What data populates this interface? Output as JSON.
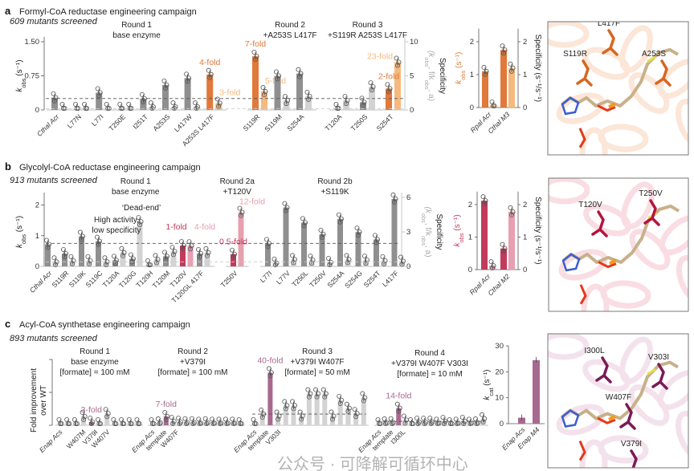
{
  "colors": {
    "gray": "#8f8f8f",
    "light_gray": "#d3d3d3",
    "orange": "#e0793a",
    "light_orange": "#f6b97e",
    "crimson": "#c23a5c",
    "pink": "#e6a0b0",
    "mauve": "#a8698f",
    "purple_residue": "#7d1a55",
    "orange_residue": "#d8661f",
    "crimson_residue": "#b5143f"
  },
  "panels": [
    {
      "letter": "a",
      "title": "Formyl-CoA reductase engineering campaign",
      "subtitle": "609 mutants screened"
    },
    {
      "letter": "b",
      "title": "Glycolyl-CoA reductase engineering campaign",
      "subtitle": "913 mutants screened"
    },
    {
      "letter": "c",
      "title": "Acyl-CoA synthetase engineering campaign",
      "subtitle": "893 mutants screened"
    }
  ],
  "structures": [
    {
      "tint": "#fbe6d8",
      "residue_color": "#d8661f",
      "residues": [
        "S119R",
        "L417F",
        "A253S"
      ]
    },
    {
      "tint": "#f9dde3",
      "residue_color": "#b5143f",
      "residues": [
        "T120V",
        "T250V"
      ]
    },
    {
      "tint": "#f3e2ec",
      "residue_color": "#7d1a55",
      "residues": [
        "I300L",
        "V303I",
        "W407F",
        "V379I"
      ]
    }
  ],
  "watermark": "公众号 · 可降解可循环中心",
  "chart_data": [
    {
      "type": "bar",
      "ylabel_parts": [
        "k",
        "obs",
        " (s⁻¹)"
      ],
      "y2label": "Specificity",
      "y2label_parts": [
        "(k",
        "obs",
        ", f/k",
        "obs",
        ", a)"
      ],
      "ylim": [
        0,
        1.5
      ],
      "yticks": [
        "0",
        "0.75",
        "1.50"
      ],
      "y2lim": [
        0,
        10
      ],
      "y2ticks": [
        "0",
        "5",
        "10"
      ],
      "dashed_kobs": 0.25,
      "dashed_spec": 0.2,
      "highlight_colors": [
        "#e0793a",
        "#f6b97e"
      ],
      "groups": [
        {
          "title": [
            "Round 1",
            "base enzyme"
          ],
          "items": [
            {
              "label": "Cthal Acr",
              "kobs": 0.27,
              "spec": 0.1,
              "italic": true
            },
            {
              "label": "L77N",
              "kobs": 0.01,
              "spec": 0.15
            },
            {
              "label": "L77I",
              "kobs": 0.38,
              "spec": 0.1
            },
            {
              "label": "T250E",
              "kobs": 0.01,
              "spec": 0.05
            },
            {
              "label": "I251T",
              "kobs": 0.25,
              "spec": 0.45
            },
            {
              "label": "A253S",
              "kobs": 0.55,
              "spec": 0.45
            },
            {
              "label": "L417W",
              "kobs": 0.7,
              "spec": 0.45
            },
            {
              "label": "A253S L417F",
              "kobs": 0.78,
              "spec": 1.0,
              "highlight": true,
              "fold_kobs": "4-fold",
              "fold_spec": "3-fold"
            }
          ]
        },
        {
          "title": [
            "Round 2",
            "+A253S L417F"
          ],
          "items": [
            {
              "label": "S119R",
              "kobs": 1.18,
              "spec": 2.7,
              "highlight": true,
              "fold_kobs": "7-fold",
              "fold_spec": "5-fold"
            },
            {
              "label": "S119M",
              "kobs": 0.75,
              "spec": 1.4
            },
            {
              "label": "S254A",
              "kobs": 0.8,
              "spec": 2.0
            }
          ]
        },
        {
          "title": [
            "Round 3",
            "+S119R A253S L417F"
          ],
          "items": [
            {
              "label": "T120A",
              "kobs": 0.01,
              "spec": 1.4
            },
            {
              "label": "T250S",
              "kobs": 0.17,
              "spec": 3.4
            },
            {
              "label": "S254T",
              "kobs": 0.47,
              "spec": 7.0,
              "highlight": true,
              "fold_kobs": "2-fold",
              "fold_spec": "23-fold"
            }
          ]
        }
      ]
    },
    {
      "type": "bar",
      "ylabel_parts": [
        "k",
        "obs",
        " (s⁻¹)"
      ],
      "y2label": "Specificity (s⁻¹/s⁻¹)",
      "ylim": [
        0,
        2.4
      ],
      "yticks": [
        "0",
        "1",
        "2"
      ],
      "y2ticks": [
        "0",
        "1",
        "2"
      ],
      "colors": [
        "#e0793a",
        "#f6b97e"
      ],
      "items": [
        {
          "label": "Rpal Acr",
          "kobs": 1.1,
          "spec": 0.05
        },
        {
          "label": "Cthal M3",
          "kobs": 1.75,
          "spec": 1.2
        }
      ]
    },
    {
      "type": "bar",
      "ylabel_parts": [
        "k",
        "obs",
        " (s⁻¹)"
      ],
      "y2label": "Specificity",
      "y2label_parts": [
        "(k",
        "obs",
        ", f/k",
        "obs",
        ", a)"
      ],
      "ylim": [
        0,
        2.25
      ],
      "yticks": [
        "0",
        "1",
        "2"
      ],
      "y2lim": [
        0,
        6
      ],
      "y2ticks": [
        "0",
        "3",
        "6"
      ],
      "dashed_kobs": 0.75,
      "dashed_spec": 0.4,
      "highlight_colors": [
        "#c23a5c",
        "#e6a0b0"
      ],
      "annotations": {
        "high_activity": [
          "High activity,",
          "low specificity"
        ],
        "dead_end": "‘Dead-end’"
      },
      "groups": [
        {
          "title": [
            "Round 1",
            "base enzyme"
          ],
          "items": [
            {
              "label": "Cthal Acr",
              "kobs": 0.72,
              "spec": 0.4,
              "italic": true
            },
            {
              "label": "S119R",
              "kobs": 0.42,
              "spec": 0.5
            },
            {
              "label": "S119K",
              "kobs": 0.98,
              "spec": 0.5
            },
            {
              "label": "S119C",
              "kobs": 0.82,
              "spec": 0.4
            },
            {
              "label": "T120A",
              "kobs": 0.2,
              "spec": 1.2
            },
            {
              "label": "T120G",
              "kobs": 0.25,
              "spec": 3.9
            },
            {
              "label": "T120H",
              "kobs": 0.03,
              "spec": 0.6
            },
            {
              "label": "T120M",
              "kobs": 0.33,
              "spec": 1.3
            },
            {
              "label": "T120V",
              "kobs": 0.68,
              "spec": 1.8,
              "highlight": true,
              "fold_kobs": "1-fold",
              "fold_spec": "4-fold"
            },
            {
              "label": "T120GL 417F",
              "kobs": 0.42,
              "spec": 1.2
            }
          ]
        },
        {
          "title": [
            "Round 2a",
            "+T120V"
          ],
          "items": [
            {
              "label": "T250V",
              "kobs": 0.4,
              "spec": 4.7,
              "highlight": true,
              "fold_kobs": "0.5-fold",
              "fold_spec": "12-fold"
            }
          ]
        },
        {
          "title": [
            "Round 2b",
            "+S119K"
          ],
          "items": [
            {
              "label": "L77I",
              "kobs": 0.75,
              "spec": 0.3
            },
            {
              "label": "L77V",
              "kobs": 1.92,
              "spec": 0.6
            },
            {
              "label": "T250L",
              "kobs": 1.43,
              "spec": 0.55
            },
            {
              "label": "T250V",
              "kobs": 1.05,
              "spec": 0.35
            },
            {
              "label": "S254A",
              "kobs": 1.55,
              "spec": 0.6
            },
            {
              "label": "S254G",
              "kobs": 1.12,
              "spec": 0.55
            },
            {
              "label": "S254T",
              "kobs": 0.88,
              "spec": 0.5
            },
            {
              "label": "L417F",
              "kobs": 2.2,
              "spec": 0.45
            }
          ]
        }
      ]
    },
    {
      "type": "bar",
      "ylabel_parts": [
        "k",
        "obs",
        " (s⁻¹)"
      ],
      "y2label": "Specificity (s⁻¹/s⁻¹)",
      "ylim": [
        0,
        2.4
      ],
      "yticks": [
        "0",
        "1",
        "2"
      ],
      "y2ticks": [
        "0",
        "1",
        "2"
      ],
      "colors": [
        "#c23a5c",
        "#e6a0b0"
      ],
      "items": [
        {
          "label": "Rpal Acr",
          "kobs": 2.12,
          "spec": 0.12
        },
        {
          "label": "Cthal M2",
          "kobs": 0.65,
          "spec": 1.78
        }
      ]
    },
    {
      "type": "bar",
      "ylabel": [
        "Fold improvement",
        "over WT"
      ],
      "ylim": [
        0,
        50
      ],
      "highlight_color": "#a8698f",
      "groups": [
        {
          "title": [
            "Round 1",
            "base enzyme",
            "[formate] = 100 mM"
          ],
          "values": [
            0.5,
            0.5,
            0.5,
            6.7,
            2.4,
            0.5,
            9,
            0.5,
            0.5,
            0.5,
            0.5
          ],
          "labels": {
            "0": "Enap Acs",
            "3": "W407M",
            "4": "V379I",
            "6": "W407V"
          },
          "highlight": 4,
          "fold": "3-fold"
        },
        {
          "title": [
            "Round 2",
            "+V379I",
            "[formate] = 100 mM"
          ],
          "values": [
            0.5,
            1.8,
            6.7,
            3,
            2.4,
            2,
            2,
            1.6,
            2,
            1.6,
            1.6,
            1.6,
            1.6,
            1.2
          ],
          "labels": {
            "0": "Enap Acs",
            "1": "template",
            "2": "W407F"
          },
          "highlight": 2,
          "fold": "7-fold"
        },
        {
          "title": [
            "Round 3",
            "+V379I W407F",
            "[formate] = 50 mM"
          ],
          "values": [
            0.5,
            8.5,
            40,
            7,
            15,
            15,
            7,
            24,
            24,
            24,
            7,
            19,
            13,
            9,
            21
          ],
          "labels": {
            "0": "Enap Acs",
            "1": "template",
            "2": "V303I"
          },
          "highlight": 2,
          "fold": "40-fold",
          "dashed": 8.5
        },
        {
          "title": [
            "Round 4",
            "+V379I W407F V303I",
            "[formate] = 10 mM"
          ],
          "values": [
            0.5,
            1.8,
            2,
            13,
            4,
            0.5,
            2.4,
            2.4,
            2.4,
            1.6,
            3,
            1.2,
            1.6,
            3,
            1.6,
            1.8,
            5
          ],
          "labels": {
            "0": "Enap Acs",
            "1": "template",
            "3": "I300L"
          },
          "highlight": 3,
          "fold": "14-fold",
          "dashed": 3
        }
      ]
    },
    {
      "type": "bar",
      "ylabel_parts": [
        "k",
        "cat",
        " (s⁻¹)"
      ],
      "ylim": [
        0,
        30
      ],
      "yticks": [
        "0",
        "10",
        "20",
        "30"
      ],
      "color": "#a8698f",
      "items": [
        {
          "label": "Enap Acs",
          "kcat": 2.3
        },
        {
          "label": "Enap M4",
          "kcat": 24.5
        }
      ]
    }
  ]
}
